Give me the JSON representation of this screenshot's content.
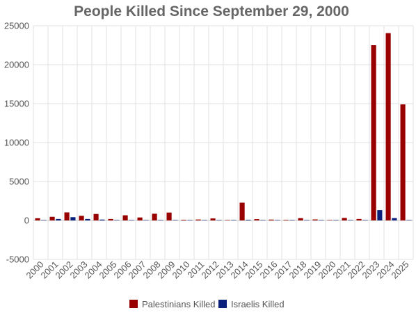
{
  "chart_data": {
    "type": "bar",
    "title": "People Killed Since September 29, 2000",
    "xlabel": "",
    "ylabel": "",
    "categories": [
      "2000",
      "2001",
      "2002",
      "2003",
      "2004",
      "2005",
      "2006",
      "2007",
      "2008",
      "2009",
      "2010",
      "2011",
      "2012",
      "2013",
      "2014",
      "2015",
      "2016",
      "2017",
      "2018",
      "2019",
      "2020",
      "2021",
      "2022",
      "2023",
      "2024",
      "2025"
    ],
    "series": [
      {
        "name": "Palestinians Killed",
        "color": "#990000",
        "values": [
          280,
          470,
          1030,
          590,
          830,
          190,
          660,
          380,
          860,
          1010,
          80,
          120,
          255,
          40,
          2280,
          170,
          110,
          70,
          290,
          130,
          30,
          320,
          190,
          22500,
          24050,
          14900
        ]
      },
      {
        "name": "Israelis Killed",
        "color": "#0a1f7a",
        "values": [
          40,
          190,
          420,
          190,
          110,
          50,
          25,
          15,
          35,
          15,
          10,
          10,
          10,
          5,
          80,
          30,
          15,
          20,
          15,
          10,
          5,
          20,
          30,
          1330,
          300,
          40
        ]
      }
    ],
    "ylim": [
      -5000,
      25000
    ],
    "yticks": [
      "25000",
      "20000",
      "15000",
      "10000",
      "5000",
      "0",
      "-5000"
    ],
    "grid": true,
    "legend_position": "bottom"
  }
}
